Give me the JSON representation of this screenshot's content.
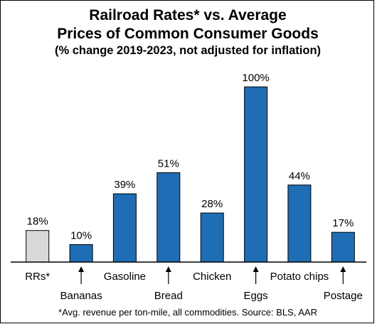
{
  "title_line1": "Railroad Rates* vs. Average",
  "title_line2": "Prices of Common Consumer Goods",
  "subtitle": "(% change 2019-2023, not adjusted for inflation)",
  "footnote": "*Avg. revenue per ton-mile, all commodities.  Source: BLS, AAR",
  "colors": {
    "highlight_bar": "#d9d9d9",
    "bar": "#1f6db5",
    "bar_outline": "#000000",
    "axis": "#000000"
  },
  "chart_data": {
    "type": "bar",
    "categories": [
      "RRs*",
      "Bananas",
      "Gasoline",
      "Bread",
      "Chicken",
      "Eggs",
      "Potato chips",
      "Postage"
    ],
    "values": [
      18,
      10,
      39,
      51,
      28,
      100,
      44,
      17
    ],
    "value_labels": [
      "18%",
      "10%",
      "39%",
      "51%",
      "28%",
      "100%",
      "44%",
      "17%"
    ],
    "label_position": [
      "top",
      "bottom",
      "top",
      "bottom",
      "top",
      "bottom",
      "top",
      "bottom"
    ],
    "highlight_index": 0,
    "unit": "%",
    "ylim": [
      0,
      100
    ],
    "grid": false,
    "legend": "none"
  }
}
